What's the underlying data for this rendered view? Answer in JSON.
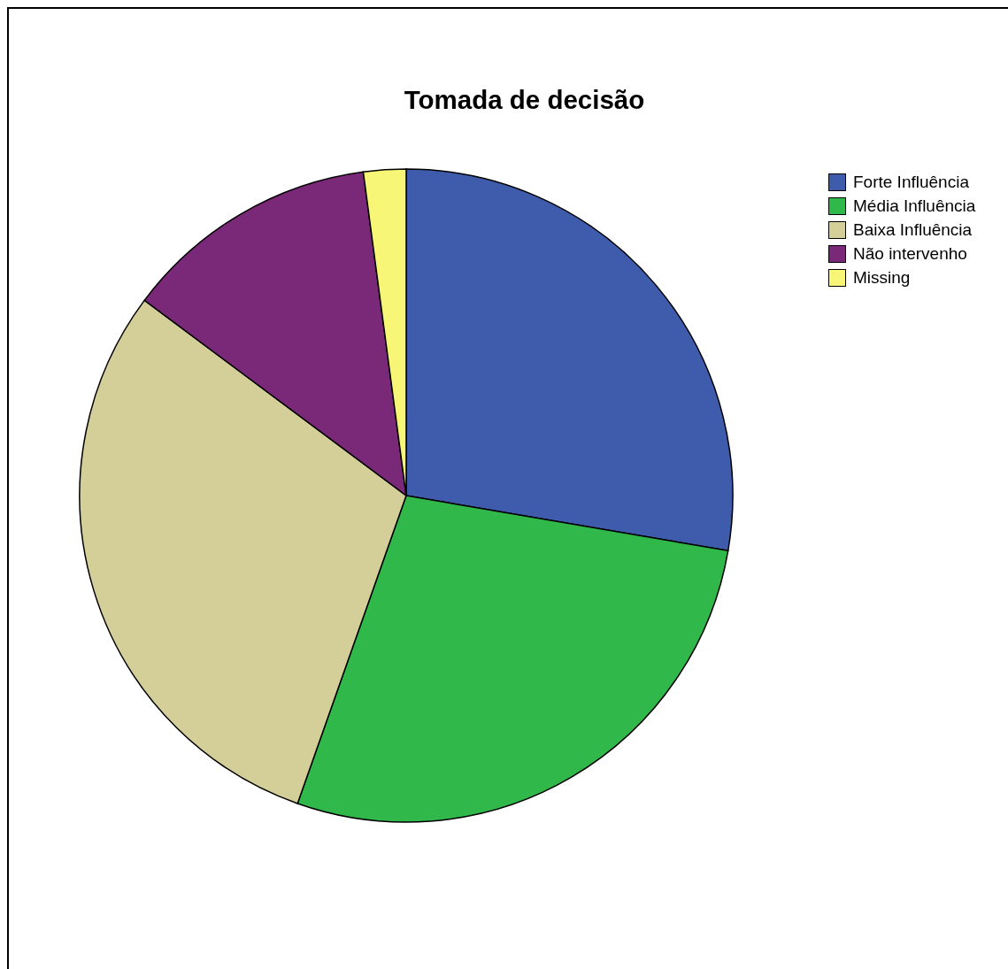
{
  "chart_data": {
    "type": "pie",
    "title": "Tomada de decisão",
    "categories": [
      "Forte Influência",
      "Média Influência",
      "Baixa Influência",
      "Não intervenho",
      "Missing"
    ],
    "values": [
      27.7,
      27.7,
      29.8,
      12.7,
      2.1
    ],
    "colors": [
      "#3f5bab",
      "#31b84a",
      "#d4cf98",
      "#7a2878",
      "#f8f676"
    ],
    "legend": "top right"
  }
}
